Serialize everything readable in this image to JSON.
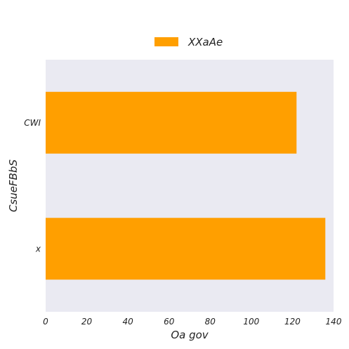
{
  "chart_data": {
    "type": "bar",
    "orientation": "horizontal",
    "categories": [
      "CWI",
      "x"
    ],
    "series": [
      {
        "name": "XXaAe",
        "values": [
          122,
          136
        ],
        "color": "#ff9f00"
      }
    ],
    "xlabel": "Oa  gov",
    "ylabel": "CsueFBbS",
    "xlim": [
      0,
      140
    ],
    "xticks": [
      0,
      20,
      40,
      60,
      80,
      100,
      120,
      140
    ],
    "grid": false,
    "legend_position": "top-center",
    "background_color": "#eaeaf2"
  }
}
